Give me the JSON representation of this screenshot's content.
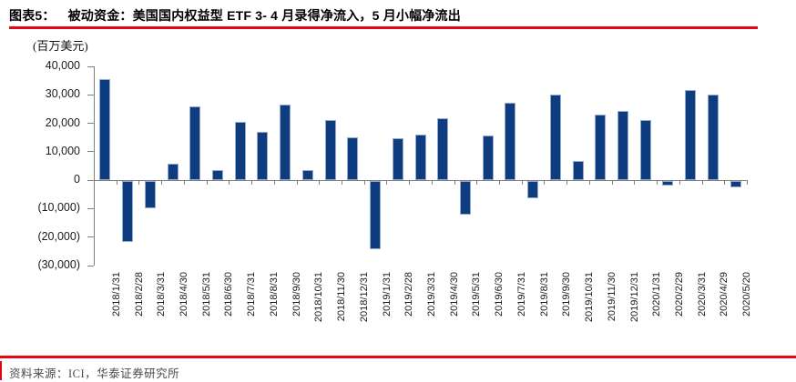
{
  "title": {
    "prefix": "图表5：",
    "text": "被动资金：美国国内权益型 ETF 3- 4 月录得净流入，5 月小幅净流出"
  },
  "source": "资料来源：ICI，华泰证券研究所",
  "colors": {
    "accent_red": "#e30613",
    "bar_fill": "#0e3c7e",
    "bar_border": "#93a9ce",
    "axis": "#7f7f7f",
    "text": "#1a1a1a",
    "source_text": "#4a4a4a"
  },
  "chart_data": {
    "type": "bar",
    "title": "被动资金：美国国内权益型 ETF 3- 4 月录得净流入，5 月小幅净流出",
    "unit_label": "(百万美元)",
    "xlabel": "",
    "ylabel": "百万美元",
    "ylim": [
      -30000,
      40000
    ],
    "grid": false,
    "legend": "none",
    "y_ticks": [
      {
        "value": 40000,
        "label": "40,000"
      },
      {
        "value": 30000,
        "label": "30,000"
      },
      {
        "value": 20000,
        "label": "20,000"
      },
      {
        "value": 10000,
        "label": "10,000"
      },
      {
        "value": 0,
        "label": "0"
      },
      {
        "value": -10000,
        "label": "(10,000)"
      },
      {
        "value": -20000,
        "label": "(20,000)"
      },
      {
        "value": -30000,
        "label": "(30,000)"
      }
    ],
    "categories": [
      "2018/1/31",
      "2018/2/28",
      "2018/3/31",
      "2018/4/30",
      "2018/5/31",
      "2018/6/30",
      "2018/7/31",
      "2018/8/31",
      "2018/9/30",
      "2018/10/31",
      "2018/11/30",
      "2018/12/31",
      "2019/1/31",
      "2019/2/28",
      "2019/3/31",
      "2019/4/30",
      "2019/5/31",
      "2019/6/30",
      "2019/7/31",
      "2019/8/31",
      "2019/9/30",
      "2019/10/31",
      "2019/11/30",
      "2019/12/31",
      "2020/1/31",
      "2020/2/29",
      "2020/3/31",
      "2020/4/29",
      "2020/5/20"
    ],
    "values": [
      35600,
      -21400,
      -9500,
      5900,
      26000,
      3500,
      20400,
      17000,
      26600,
      3500,
      21200,
      15200,
      -24000,
      14900,
      16100,
      21800,
      -11800,
      15800,
      27100,
      -6100,
      30000,
      6800,
      22900,
      24300,
      21000,
      -1400,
      31600,
      30100,
      -2200
    ]
  }
}
